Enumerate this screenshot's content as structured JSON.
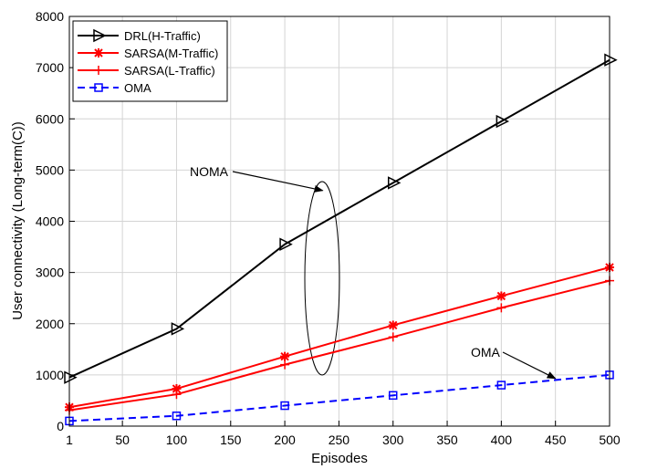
{
  "chart_data": {
    "type": "line",
    "xlabel": "Episodes",
    "ylabel": "User connectivity (Long-term(C))",
    "xlim": [
      1,
      500
    ],
    "ylim": [
      0,
      8000
    ],
    "xticks": [
      1,
      50,
      100,
      150,
      200,
      250,
      300,
      350,
      400,
      450,
      500
    ],
    "yticks": [
      0,
      1000,
      2000,
      3000,
      4000,
      5000,
      6000,
      7000,
      8000
    ],
    "grid": true,
    "legend_position": "top-left",
    "series": [
      {
        "name": "DRL(H-Traffic)",
        "color": "#000000",
        "marker": "triangle-right",
        "line": "solid",
        "x": [
          1,
          100,
          200,
          300,
          400,
          500
        ],
        "y": [
          950,
          1900,
          3550,
          4750,
          5950,
          7150
        ]
      },
      {
        "name": "SARSA(M-Traffic)",
        "color": "#ff0000",
        "marker": "star",
        "line": "solid",
        "x": [
          1,
          100,
          200,
          300,
          400,
          500
        ],
        "y": [
          370,
          730,
          1360,
          1970,
          2540,
          3100
        ]
      },
      {
        "name": "SARSA(L-Traffic)",
        "color": "#ff0000",
        "marker": "plus",
        "line": "solid",
        "x": [
          1,
          100,
          200,
          300,
          400,
          500
        ],
        "y": [
          310,
          620,
          1200,
          1740,
          2310,
          2840
        ]
      },
      {
        "name": "OMA",
        "color": "#0000ff",
        "marker": "square",
        "line": "dashed",
        "x": [
          1,
          100,
          200,
          300,
          400,
          500
        ],
        "y": [
          100,
          200,
          400,
          600,
          800,
          1000
        ]
      }
    ],
    "annotations": [
      {
        "text": "NOMA",
        "arrow_to": {
          "x": 235,
          "y": 4600
        }
      },
      {
        "text": "OMA",
        "arrow_to": {
          "x": 450,
          "y": 930
        }
      }
    ]
  }
}
